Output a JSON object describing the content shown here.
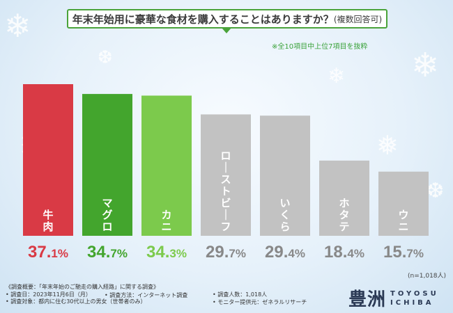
{
  "header": {
    "title": "年末年始用に豪華な食材を購入することはありますか？",
    "title_suffix": "(複数回答可)",
    "note": "※全10項目中上位7項目を抜粋"
  },
  "chart_data": {
    "type": "bar",
    "title": "年末年始用に豪華な食材を購入することはありますか？(複数回答可)",
    "categories": [
      "牛肉",
      "マグロ",
      "カニ",
      "ローストビーフ",
      "いくら",
      "ホタテ",
      "ウニ"
    ],
    "values": [
      37.1,
      34.7,
      34.3,
      29.7,
      29.4,
      18.4,
      15.7
    ],
    "value_labels": [
      "37.1%",
      "34.7%",
      "34.3%",
      "29.7%",
      "29.4%",
      "18.4%",
      "15.7%"
    ],
    "colors": [
      "#d93a45",
      "#43a52d",
      "#7cca4c",
      "#c2c2c2",
      "#c2c2c2",
      "#c2c2c2",
      "#c2c2c2"
    ],
    "label_colors": [
      "#d93a45",
      "#43a52d",
      "#7cca4c",
      "#888888",
      "#888888",
      "#888888",
      "#888888"
    ],
    "ylim": [
      0,
      37.1
    ],
    "sample_size": "(n=1,018人)"
  },
  "footer": {
    "line1": "《調査概要：「年末年始のご馳走の購入経路」に関する調査》",
    "date": "• 調査日：2023年11月6日（月）",
    "method": "• 調査方法：インターネット調査",
    "target": "• 調査対象：都内に住む30代以上の男女（世帯者のみ）",
    "count": "• 調査人数：1,018人",
    "provider": "• モニター提供元：ゼネラルリサーチ"
  },
  "logo": {
    "kanji": "豊洲",
    "line1": "TOYOSU",
    "line2": "ICHIBA"
  }
}
